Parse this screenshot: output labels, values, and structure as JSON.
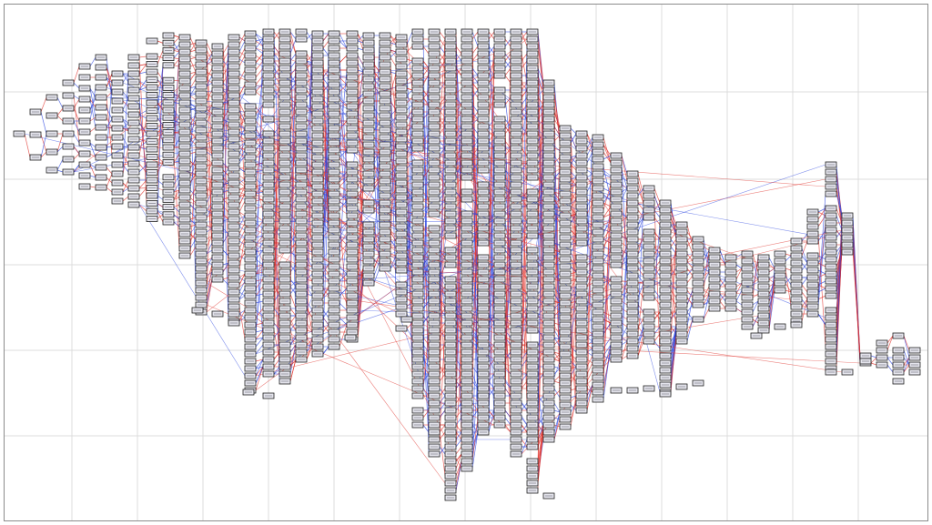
{
  "canvas": {
    "background": "#ffffff",
    "border_color": "#8c8c8c",
    "grid_color": "#dcdcdc"
  },
  "graph": {
    "node_fill": "#e4e4ec",
    "node_stroke": "#222222",
    "edge_color_a": "#e0302a",
    "edge_color_b": "#2a44e0"
  }
}
